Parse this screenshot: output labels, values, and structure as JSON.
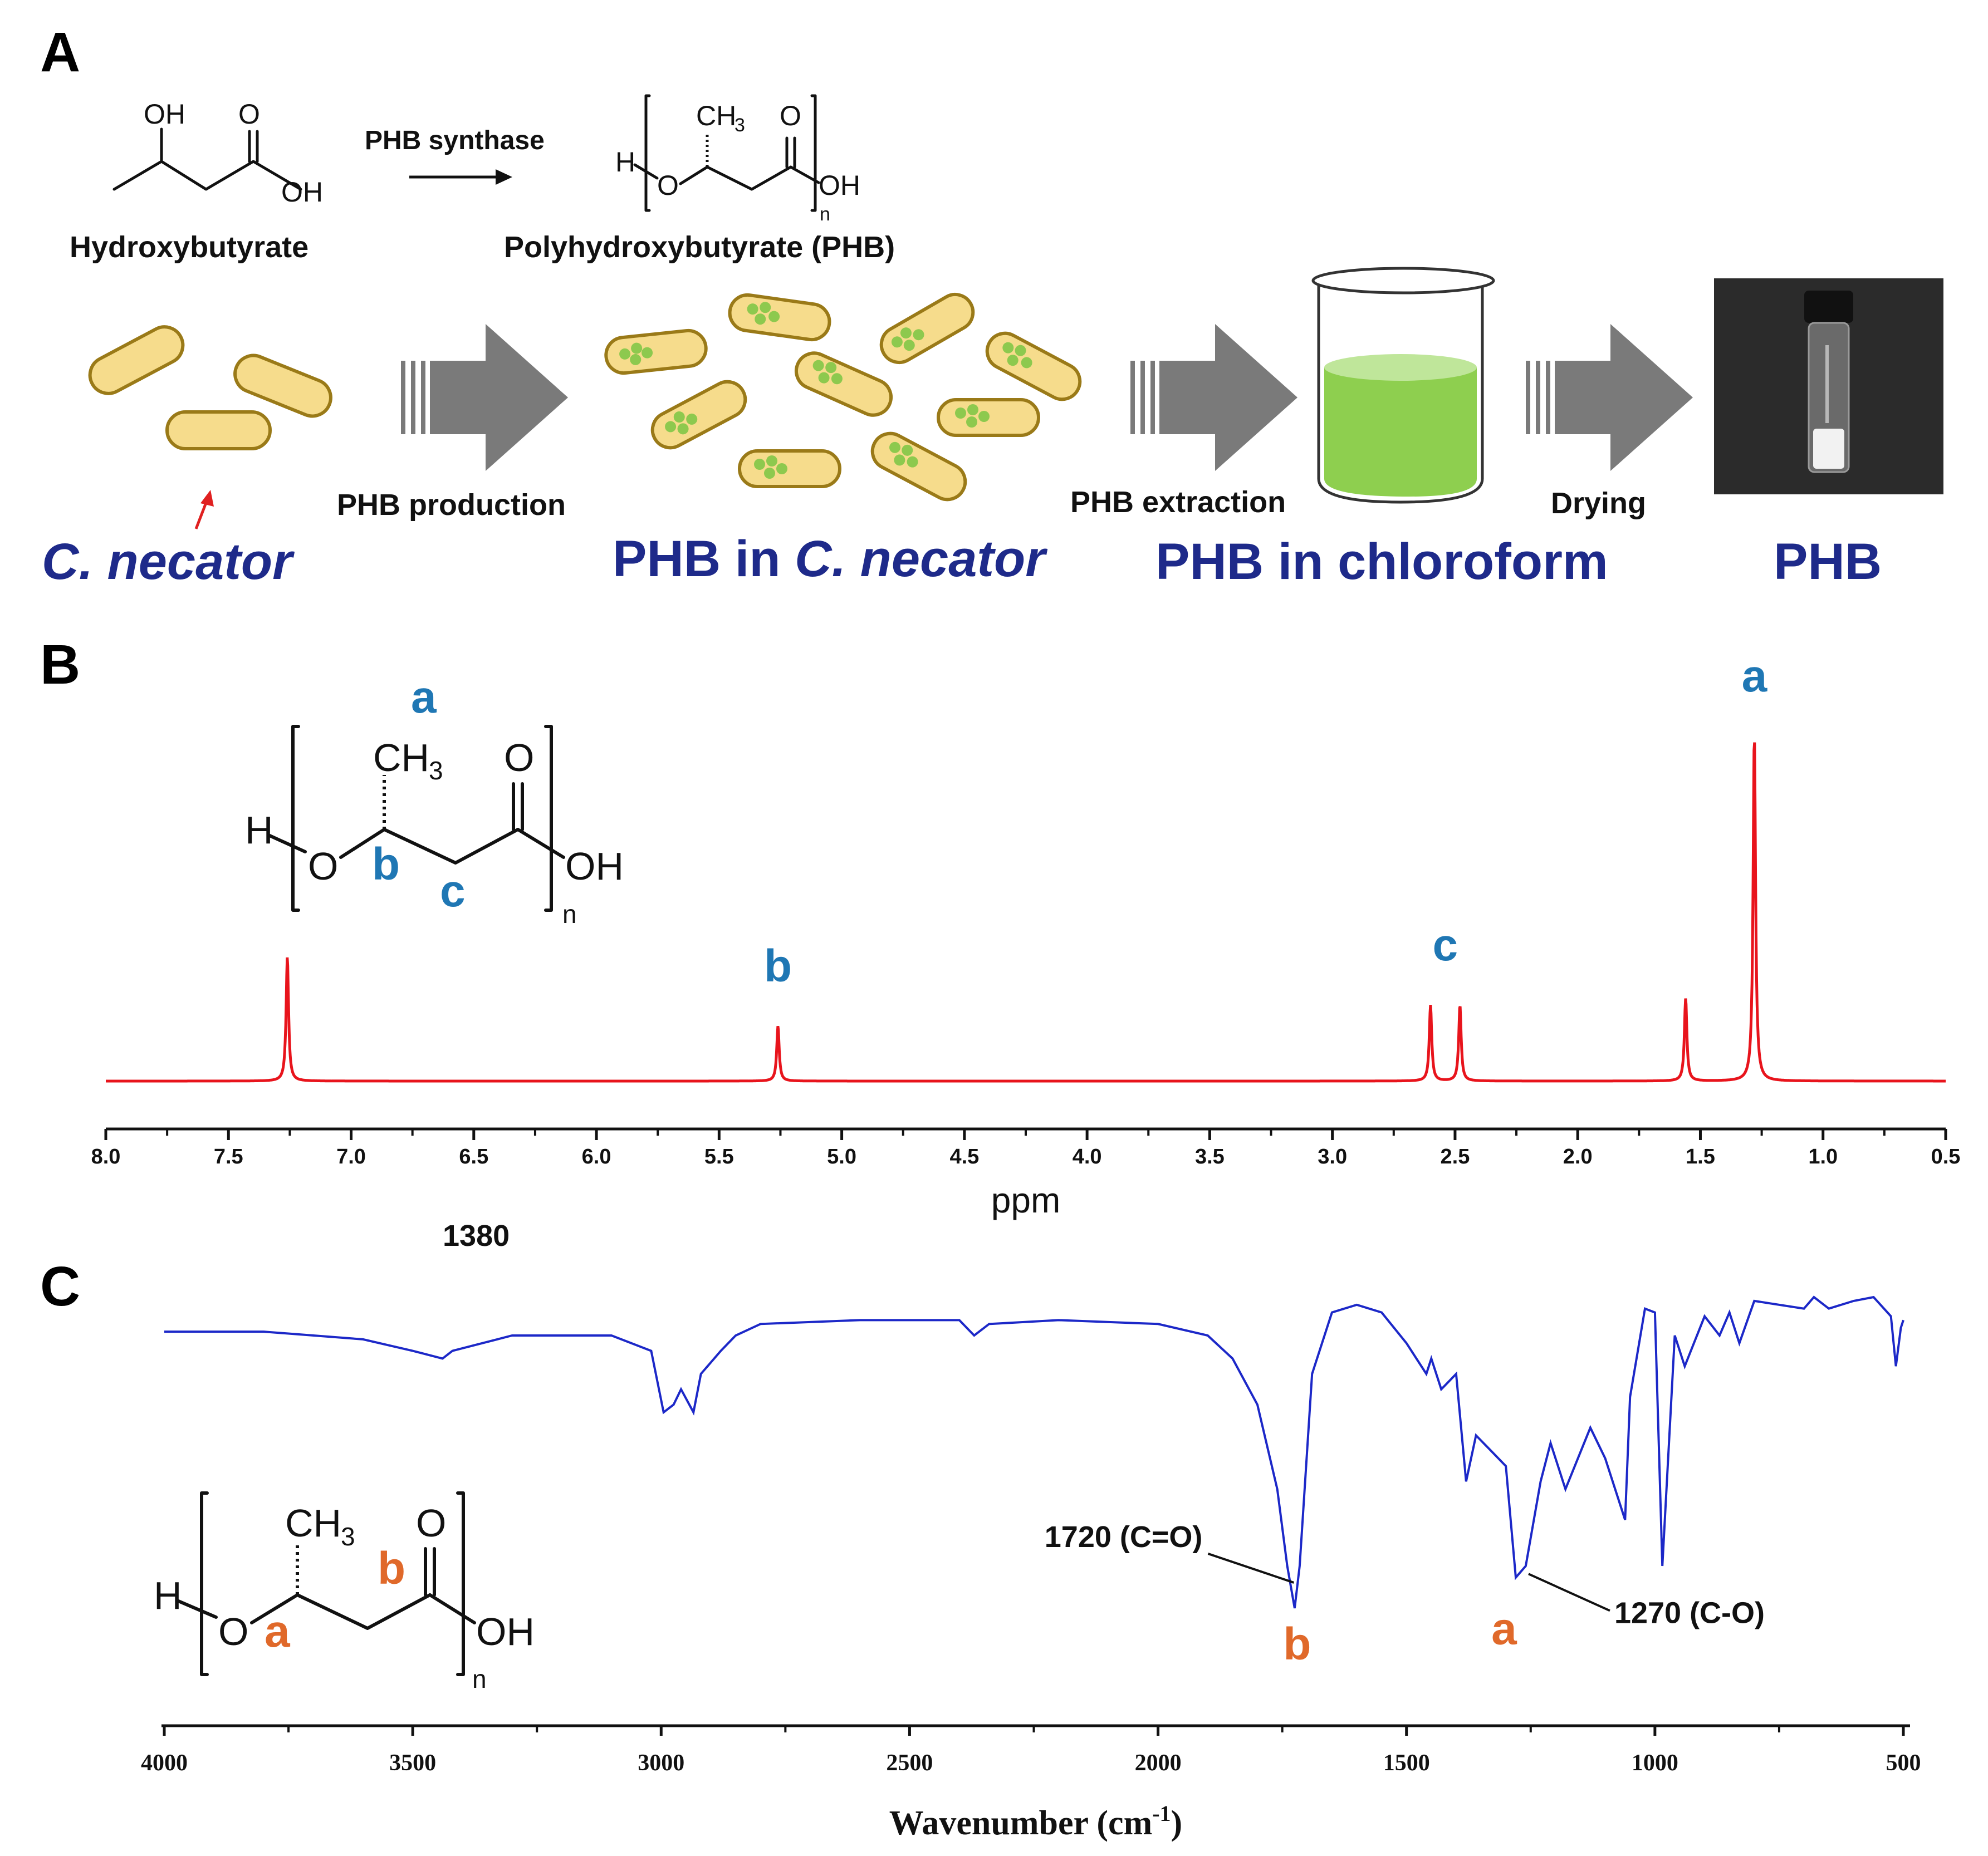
{
  "panels": {
    "a": "A",
    "b": "B",
    "c": "C"
  },
  "panel_a": {
    "reaction": {
      "substrate": "Hydroxybutyrate",
      "enzyme": "PHB synthase",
      "product": "Polyhydroxybutyrate (PHB)"
    },
    "chem_labels": {
      "oh": "OH",
      "o": "O",
      "h": "H",
      "ch": "CH",
      "sub3": "3",
      "n": "n"
    },
    "steps": {
      "production": "PHB production",
      "extraction": "PHB extraction",
      "drying": "Drying"
    },
    "stages": {
      "organism": "C. necator",
      "phb_in_prefix": "PHB in ",
      "phb_in_organism": "C. necator",
      "phb_in_chloroform": "PHB in chloroform",
      "phb": "PHB"
    },
    "colors": {
      "cell_fill": "#f6dc8c",
      "granule": "#8dc94e",
      "solution": "#8ecf4f",
      "stage_text": "#1e2a8a",
      "arrow": "#7a7a7a"
    }
  },
  "panel_b": {
    "structure_labels": {
      "a": "a",
      "b": "b",
      "c": "c"
    },
    "chart_data": {
      "type": "line",
      "title": "",
      "xlabel": "ppm",
      "ylabel": "",
      "xlim": [
        8.0,
        0.5
      ],
      "x_ticks": [
        "8.0",
        "7.5",
        "7.0",
        "6.5",
        "6.0",
        "5.5",
        "5.0",
        "4.5",
        "4.0",
        "3.5",
        "3.0",
        "2.5",
        "2.0",
        "1.5",
        "1.0",
        "0.5"
      ],
      "series_color": "#e8141c",
      "peaks": [
        {
          "ppm": 7.26,
          "height": 0.36,
          "label": ""
        },
        {
          "ppm": 5.26,
          "height": 0.16,
          "label": "b"
        },
        {
          "ppm": 2.6,
          "height": 0.22,
          "label": "c"
        },
        {
          "ppm": 2.48,
          "height": 0.22,
          "label": ""
        },
        {
          "ppm": 1.56,
          "height": 0.24,
          "label": ""
        },
        {
          "ppm": 1.28,
          "height": 1.0,
          "label": "a"
        }
      ]
    }
  },
  "stray_label": "1380",
  "panel_c": {
    "structure_labels": {
      "a": "a",
      "b": "b"
    },
    "chart_data": {
      "type": "line",
      "title": "",
      "xlabel": "Wavenumber (cm",
      "xlabel_sup": "-1",
      "xlabel_close": ")",
      "ylabel": "",
      "xlim": [
        4000,
        500
      ],
      "x_ticks": [
        "4000",
        "3500",
        "3000",
        "2500",
        "2000",
        "1500",
        "1000",
        "500"
      ],
      "series_color": "#1c28c8",
      "annotations": [
        {
          "wavenumber": 1720,
          "text": "1720 (C=O)",
          "group": "b"
        },
        {
          "wavenumber": 1270,
          "text": "1270 (C-O)",
          "group": "a"
        }
      ],
      "spectrum": [
        [
          4000,
          0.91
        ],
        [
          3800,
          0.91
        ],
        [
          3600,
          0.89
        ],
        [
          3500,
          0.86
        ],
        [
          3440,
          0.84
        ],
        [
          3420,
          0.86
        ],
        [
          3300,
          0.9
        ],
        [
          3100,
          0.9
        ],
        [
          3020,
          0.86
        ],
        [
          2995,
          0.7
        ],
        [
          2975,
          0.72
        ],
        [
          2960,
          0.76
        ],
        [
          2935,
          0.7
        ],
        [
          2920,
          0.8
        ],
        [
          2880,
          0.86
        ],
        [
          2850,
          0.9
        ],
        [
          2800,
          0.93
        ],
        [
          2600,
          0.94
        ],
        [
          2400,
          0.94
        ],
        [
          2370,
          0.9
        ],
        [
          2340,
          0.93
        ],
        [
          2200,
          0.94
        ],
        [
          2000,
          0.93
        ],
        [
          1900,
          0.9
        ],
        [
          1850,
          0.84
        ],
        [
          1800,
          0.72
        ],
        [
          1760,
          0.5
        ],
        [
          1740,
          0.3
        ],
        [
          1725,
          0.19
        ],
        [
          1715,
          0.3
        ],
        [
          1690,
          0.8
        ],
        [
          1650,
          0.96
        ],
        [
          1600,
          0.98
        ],
        [
          1550,
          0.96
        ],
        [
          1500,
          0.88
        ],
        [
          1460,
          0.8
        ],
        [
          1450,
          0.84
        ],
        [
          1430,
          0.76
        ],
        [
          1400,
          0.8
        ],
        [
          1380,
          0.52
        ],
        [
          1360,
          0.64
        ],
        [
          1300,
          0.56
        ],
        [
          1280,
          0.27
        ],
        [
          1260,
          0.3
        ],
        [
          1230,
          0.52
        ],
        [
          1210,
          0.62
        ],
        [
          1180,
          0.5
        ],
        [
          1130,
          0.66
        ],
        [
          1100,
          0.58
        ],
        [
          1060,
          0.42
        ],
        [
          1050,
          0.74
        ],
        [
          1020,
          0.97
        ],
        [
          1000,
          0.96
        ],
        [
          985,
          0.3
        ],
        [
          960,
          0.9
        ],
        [
          940,
          0.82
        ],
        [
          900,
          0.95
        ],
        [
          870,
          0.9
        ],
        [
          850,
          0.96
        ],
        [
          830,
          0.88
        ],
        [
          800,
          0.99
        ],
        [
          700,
          0.97
        ],
        [
          680,
          1.0
        ],
        [
          650,
          0.97
        ],
        [
          600,
          0.99
        ],
        [
          560,
          1.0
        ],
        [
          525,
          0.95
        ],
        [
          515,
          0.82
        ],
        [
          505,
          0.92
        ],
        [
          500,
          0.94
        ]
      ]
    }
  }
}
